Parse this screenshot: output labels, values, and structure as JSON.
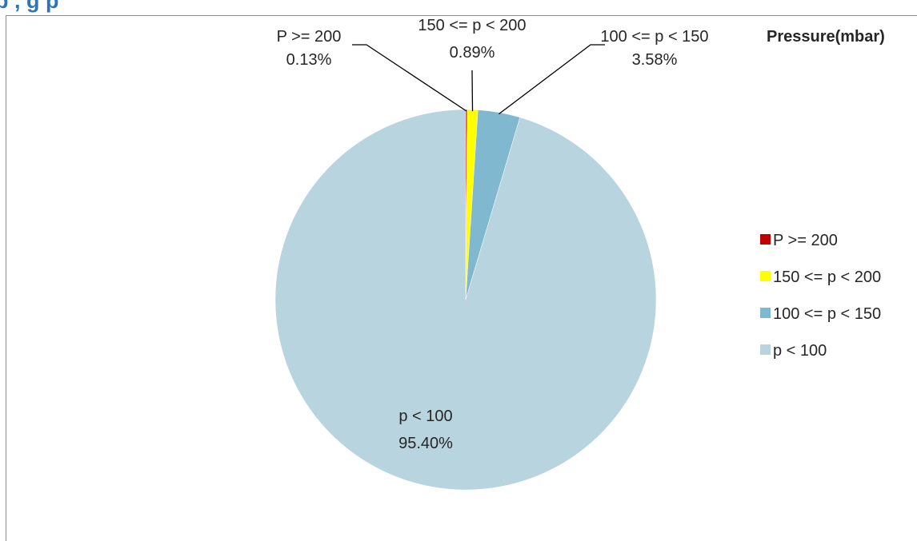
{
  "heading": "p              ,                            g     p",
  "chart_data": {
    "type": "pie",
    "title": "Pressure(mbar)",
    "legend_position": "right",
    "start_angle_deg": 0,
    "direction": "clockwise",
    "slices": [
      {
        "name": "P >= 200",
        "label_value": "0.13%",
        "value": 0.13,
        "color": "#c00000"
      },
      {
        "name": "150 <= p < 200",
        "label_value": "0.89%",
        "value": 0.89,
        "color": "#ffff00"
      },
      {
        "name": "100 <= p < 150",
        "label_value": "3.58%",
        "value": 3.58,
        "color": "#7fb8cf"
      },
      {
        "name": "p < 100",
        "label_value": "95.40%",
        "value": 95.4,
        "color": "#b7d4df"
      }
    ]
  }
}
